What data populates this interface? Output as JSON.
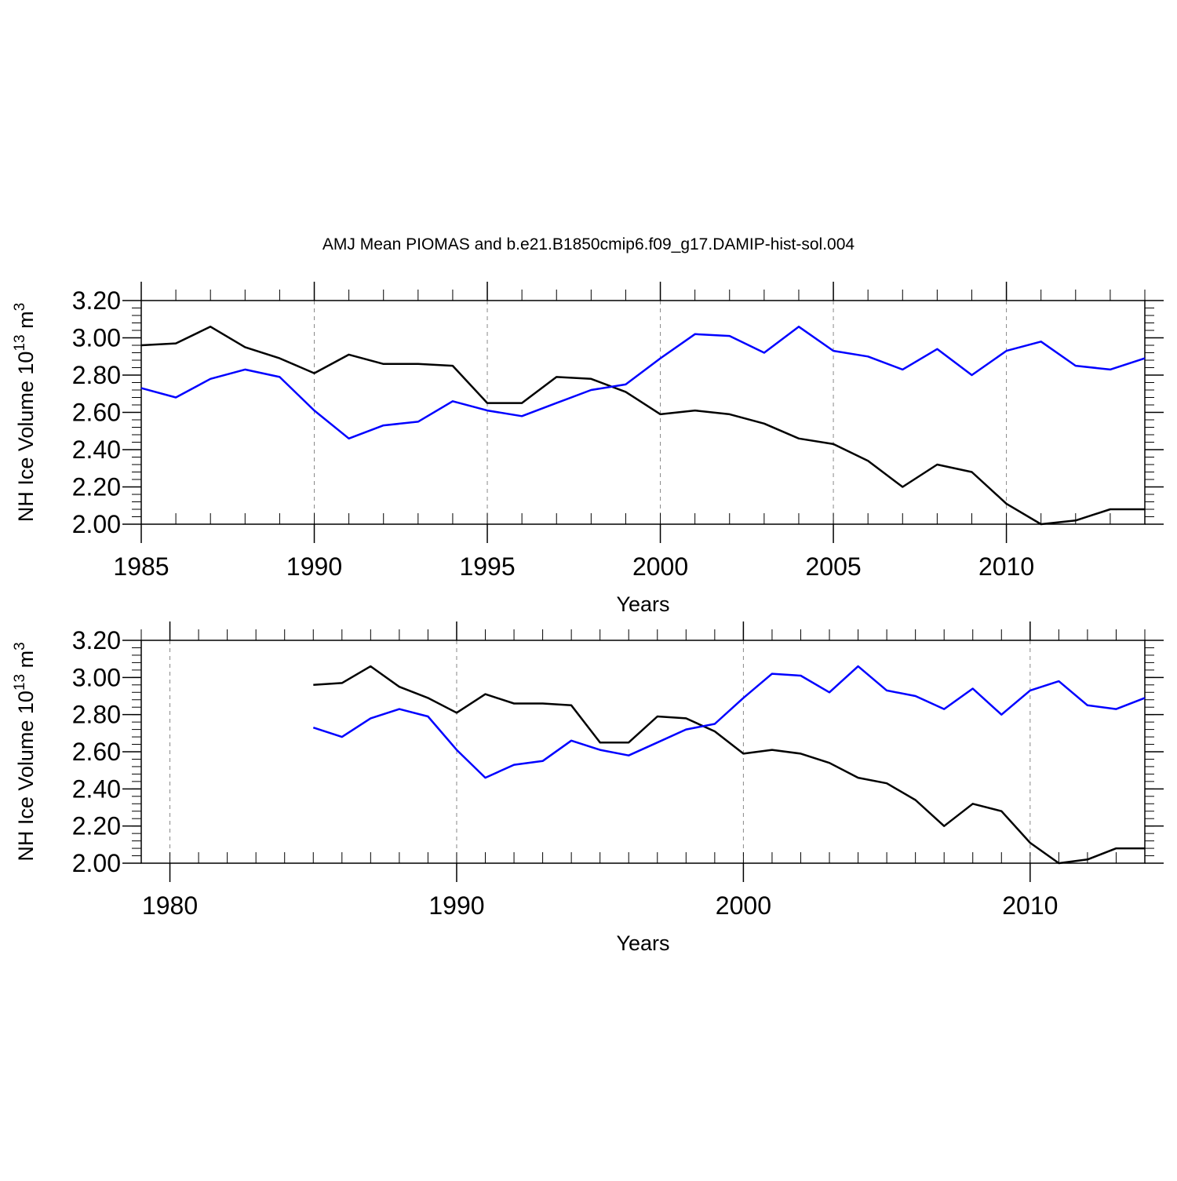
{
  "title": "AMJ Mean PIOMAS and b.e21.B1850cmip6.f09_g17.DAMIP-hist-sol.004",
  "ylabel": "NH Ice Volume 10",
  "ylabel_exp": "13",
  "ylabel_unit": " m",
  "ylabel_unit_exp": "3",
  "colors": {
    "piomas": "#000000",
    "model": "#0000ff",
    "grid": "#888888"
  },
  "chart_data": [
    {
      "type": "line",
      "title": "AMJ Mean PIOMAS and b.e21.B1850cmip6.f09_g17.DAMIP-hist-sol.004",
      "xlabel": "Years",
      "ylabel": "NH Ice Volume 10^13 m^3",
      "xlim": [
        1985,
        2014
      ],
      "ylim": [
        2.0,
        3.2
      ],
      "xticks": [
        1985,
        1990,
        1995,
        2000,
        2005,
        2010
      ],
      "xtick_labels": [
        "1985",
        "1990",
        "1995",
        "2000",
        "2005",
        "2010"
      ],
      "yticks": [
        2.0,
        2.2,
        2.4,
        2.6,
        2.8,
        3.0,
        3.2
      ],
      "ytick_labels": [
        "2.00",
        "2.20",
        "2.40",
        "2.60",
        "2.80",
        "3.00",
        "3.20"
      ],
      "grid_x": true,
      "series": [
        {
          "name": "PIOMAS",
          "color": "#000000",
          "x": [
            1985,
            1986,
            1987,
            1988,
            1989,
            1990,
            1991,
            1992,
            1993,
            1994,
            1995,
            1996,
            1997,
            1998,
            1999,
            2000,
            2001,
            2002,
            2003,
            2004,
            2005,
            2006,
            2007,
            2008,
            2009,
            2010,
            2011,
            2012,
            2013,
            2014
          ],
          "values": [
            2.96,
            2.97,
            3.06,
            2.95,
            2.89,
            2.81,
            2.91,
            2.86,
            2.86,
            2.85,
            2.65,
            2.65,
            2.79,
            2.78,
            2.71,
            2.59,
            2.61,
            2.59,
            2.54,
            2.46,
            2.43,
            2.34,
            2.2,
            2.32,
            2.28,
            2.11,
            2.0,
            2.02,
            2.08,
            2.08
          ]
        },
        {
          "name": "b.e21.B1850cmip6.f09_g17.DAMIP-hist-sol.004",
          "color": "#0000ff",
          "x": [
            1985,
            1986,
            1987,
            1988,
            1989,
            1990,
            1991,
            1992,
            1993,
            1994,
            1995,
            1996,
            1997,
            1998,
            1999,
            2000,
            2001,
            2002,
            2003,
            2004,
            2005,
            2006,
            2007,
            2008,
            2009,
            2010,
            2011,
            2012,
            2013,
            2014
          ],
          "values": [
            2.73,
            2.68,
            2.78,
            2.83,
            2.79,
            2.61,
            2.46,
            2.53,
            2.55,
            2.66,
            2.61,
            2.58,
            2.65,
            2.72,
            2.75,
            2.89,
            3.02,
            3.01,
            2.92,
            3.06,
            2.93,
            2.9,
            2.83,
            2.94,
            2.8,
            2.93,
            2.98,
            2.85,
            2.83,
            2.89
          ]
        }
      ]
    },
    {
      "type": "line",
      "title": "",
      "xlabel": "Years",
      "ylabel": "NH Ice Volume 10^13 m^3",
      "xlim": [
        1979,
        2014
      ],
      "ylim": [
        2.0,
        3.2
      ],
      "xticks": [
        1980,
        1990,
        2000,
        2010
      ],
      "xtick_labels": [
        "1980",
        "1990",
        "2000",
        "2010"
      ],
      "yticks": [
        2.0,
        2.2,
        2.4,
        2.6,
        2.8,
        3.0,
        3.2
      ],
      "ytick_labels": [
        "2.00",
        "2.20",
        "2.40",
        "2.60",
        "2.80",
        "3.00",
        "3.20"
      ],
      "grid_x": true,
      "series": [
        {
          "name": "PIOMAS",
          "color": "#000000",
          "x": [
            1985,
            1986,
            1987,
            1988,
            1989,
            1990,
            1991,
            1992,
            1993,
            1994,
            1995,
            1996,
            1997,
            1998,
            1999,
            2000,
            2001,
            2002,
            2003,
            2004,
            2005,
            2006,
            2007,
            2008,
            2009,
            2010,
            2011,
            2012,
            2013,
            2014
          ],
          "values": [
            2.96,
            2.97,
            3.06,
            2.95,
            2.89,
            2.81,
            2.91,
            2.86,
            2.86,
            2.85,
            2.65,
            2.65,
            2.79,
            2.78,
            2.71,
            2.59,
            2.61,
            2.59,
            2.54,
            2.46,
            2.43,
            2.34,
            2.2,
            2.32,
            2.28,
            2.11,
            2.0,
            2.02,
            2.08,
            2.08
          ]
        },
        {
          "name": "b.e21.B1850cmip6.f09_g17.DAMIP-hist-sol.004",
          "color": "#0000ff",
          "x": [
            1985,
            1986,
            1987,
            1988,
            1989,
            1990,
            1991,
            1992,
            1993,
            1994,
            1995,
            1996,
            1997,
            1998,
            1999,
            2000,
            2001,
            2002,
            2003,
            2004,
            2005,
            2006,
            2007,
            2008,
            2009,
            2010,
            2011,
            2012,
            2013,
            2014
          ],
          "values": [
            2.73,
            2.68,
            2.78,
            2.83,
            2.79,
            2.61,
            2.46,
            2.53,
            2.55,
            2.66,
            2.61,
            2.58,
            2.65,
            2.72,
            2.75,
            2.89,
            3.02,
            3.01,
            2.92,
            3.06,
            2.93,
            2.9,
            2.83,
            2.94,
            2.8,
            2.93,
            2.98,
            2.85,
            2.83,
            2.89
          ]
        }
      ]
    }
  ]
}
